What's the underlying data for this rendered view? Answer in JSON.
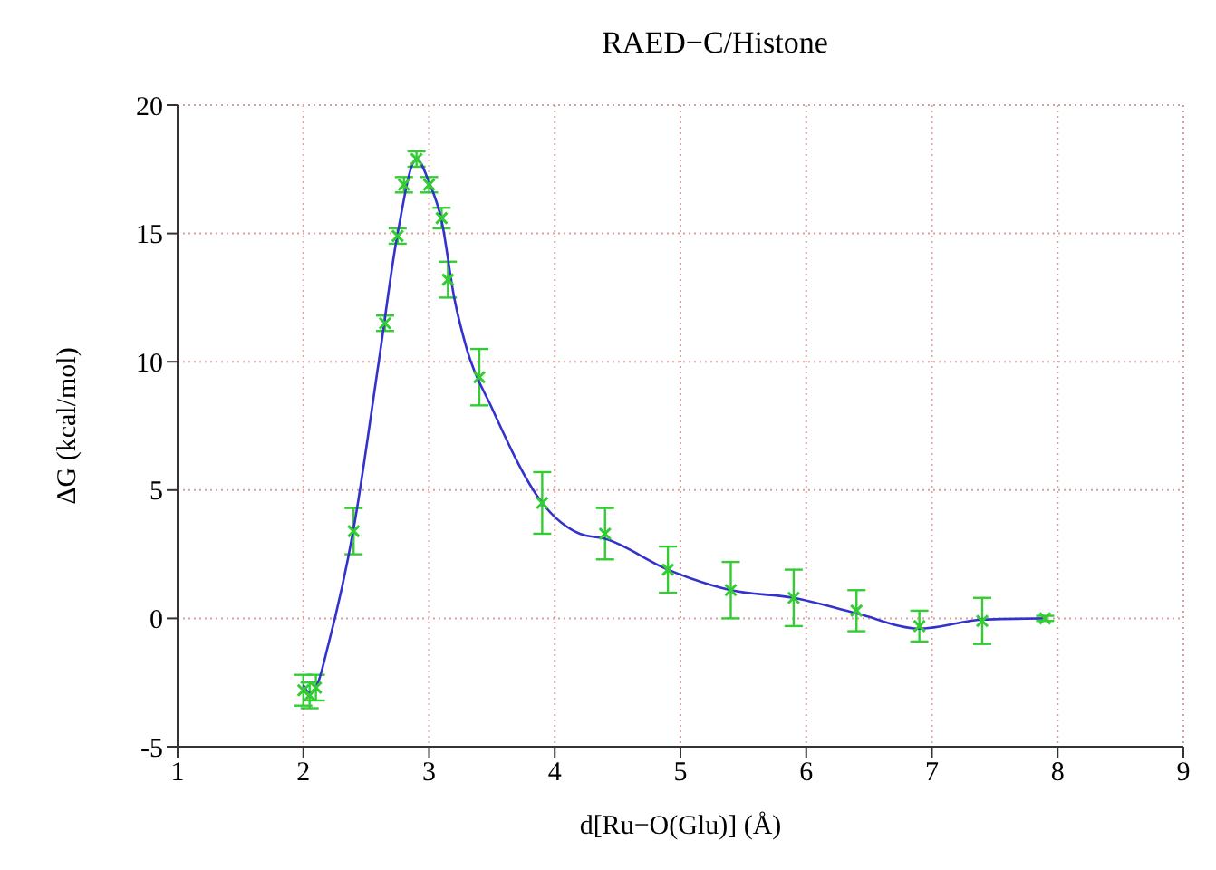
{
  "chart_data": {
    "type": "scatter",
    "title": "RAED−C/Histone",
    "xlabel": "d[Ru−O(Glu)] (Å)",
    "ylabel": "ΔG (kcal/mol)",
    "xlim": [
      1,
      9
    ],
    "xticks": [
      1,
      2,
      3,
      4,
      5,
      6,
      7,
      8,
      9
    ],
    "ylim": [
      -5,
      20
    ],
    "yticks": [
      -5,
      0,
      5,
      10,
      15,
      20
    ],
    "grid": true,
    "marker": "cross",
    "series": [
      {
        "color": "#33cc33",
        "x": [
          2.0,
          2.05,
          2.1,
          2.4,
          2.65,
          2.75,
          2.8,
          2.9,
          3.0,
          3.1,
          3.15,
          3.4,
          3.9,
          4.4,
          4.9,
          5.4,
          5.9,
          6.4,
          6.9,
          7.4,
          7.9
        ],
        "values": [
          -2.8,
          -3.0,
          -2.7,
          3.4,
          11.5,
          14.9,
          16.9,
          17.9,
          16.9,
          15.6,
          13.2,
          9.4,
          4.5,
          3.3,
          1.9,
          1.1,
          0.8,
          0.3,
          -0.3,
          -0.1,
          0.0
        ],
        "errors": [
          0.6,
          0.5,
          0.5,
          0.9,
          0.3,
          0.3,
          0.3,
          0.3,
          0.3,
          0.4,
          0.7,
          1.1,
          1.2,
          1.0,
          0.9,
          1.1,
          1.1,
          0.8,
          0.6,
          0.9,
          0.1
        ]
      },
      {
        "type": "line",
        "color": "#3333cc",
        "marker": "none",
        "x": [
          2.0,
          2.05,
          2.1,
          2.2,
          2.4,
          2.6,
          2.75,
          2.9,
          3.0,
          3.1,
          3.2,
          3.3,
          3.5,
          3.9,
          4.2,
          4.4,
          4.9,
          5.4,
          5.9,
          6.4,
          6.9,
          7.4,
          7.9
        ],
        "values": [
          -2.6,
          -2.9,
          -2.7,
          -1.0,
          3.5,
          10.0,
          15.0,
          17.9,
          17.0,
          15.5,
          12.5,
          10.5,
          8.2,
          4.5,
          3.3,
          3.1,
          1.9,
          1.1,
          0.8,
          0.2,
          -0.4,
          -0.05,
          0.0
        ]
      }
    ]
  }
}
